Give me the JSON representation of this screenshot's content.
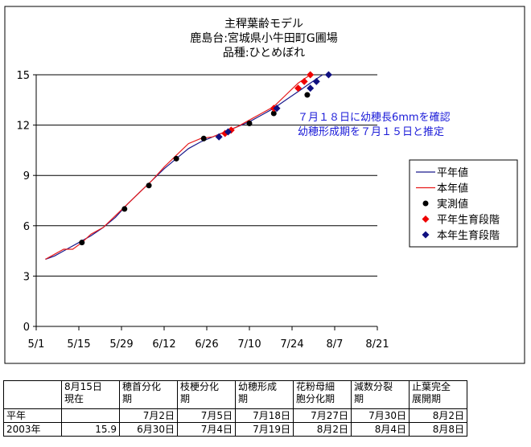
{
  "chart_data": {
    "type": "line",
    "title_lines": [
      "主稈葉齢モデル",
      "鹿島台:宮城県小牛田町G圃場",
      "品種:ひとめぼれ"
    ],
    "annotation_lines": [
      "７月１８日に幼穂長6mmを確認",
      "幼穂形成期を７月１５日と推定"
    ],
    "annotation_color": "#1a1ad8",
    "x_tick_labels": [
      "5/1",
      "5/15",
      "5/29",
      "6/12",
      "6/26",
      "7/10",
      "7/24",
      "8/7",
      "8/21"
    ],
    "x_tick_days": [
      0,
      14,
      28,
      42,
      56,
      70,
      84,
      98,
      112
    ],
    "x_range_days": [
      0,
      112
    ],
    "y_ticks": [
      0,
      3,
      6,
      9,
      12,
      15
    ],
    "ylim": [
      0,
      15
    ],
    "grid": "horizontal",
    "legend_position": "right",
    "series": [
      {
        "name": "平年値",
        "kind": "line",
        "color": "#1a1a8c",
        "points": [
          [
            3,
            4.0
          ],
          [
            6,
            4.2
          ],
          [
            10,
            4.6
          ],
          [
            14,
            5.0
          ],
          [
            18,
            5.4
          ],
          [
            22,
            5.9
          ],
          [
            26,
            6.5
          ],
          [
            30,
            7.3
          ],
          [
            34,
            8.0
          ],
          [
            38,
            8.7
          ],
          [
            42,
            9.4
          ],
          [
            46,
            10.0
          ],
          [
            50,
            10.6
          ],
          [
            54,
            11.0
          ],
          [
            58,
            11.3
          ],
          [
            62,
            11.6
          ],
          [
            66,
            11.9
          ],
          [
            70,
            12.2
          ],
          [
            74,
            12.6
          ],
          [
            78,
            13.0
          ],
          [
            82,
            13.5
          ],
          [
            86,
            14.0
          ],
          [
            90,
            14.5
          ],
          [
            94,
            15.0
          ]
        ]
      },
      {
        "name": "本年値",
        "kind": "line",
        "color": "#e81a1a",
        "points": [
          [
            3,
            4.0
          ],
          [
            6,
            4.3
          ],
          [
            9,
            4.6
          ],
          [
            12,
            4.6
          ],
          [
            15,
            5.0
          ],
          [
            18,
            5.5
          ],
          [
            22,
            5.9
          ],
          [
            26,
            6.6
          ],
          [
            30,
            7.3
          ],
          [
            34,
            8.0
          ],
          [
            38,
            8.7
          ],
          [
            42,
            9.5
          ],
          [
            46,
            10.2
          ],
          [
            50,
            10.9
          ],
          [
            54,
            11.2
          ],
          [
            58,
            11.3
          ],
          [
            62,
            11.6
          ],
          [
            66,
            11.9
          ],
          [
            70,
            12.3
          ],
          [
            74,
            12.7
          ],
          [
            78,
            13.1
          ],
          [
            82,
            13.8
          ],
          [
            86,
            14.5
          ],
          [
            90,
            15.0
          ]
        ]
      },
      {
        "name": "実測値",
        "kind": "dots",
        "color": "#000000",
        "marker": "circle",
        "points": [
          [
            15,
            5.0
          ],
          [
            29,
            7.0
          ],
          [
            37,
            8.4
          ],
          [
            46,
            10.0
          ],
          [
            55,
            11.2
          ],
          [
            70,
            12.1
          ],
          [
            78,
            12.7
          ],
          [
            89,
            13.8
          ]
        ]
      },
      {
        "name": "平年生育段階",
        "kind": "dots",
        "color": "#ee0000",
        "marker": "diamond",
        "points": [
          [
            62,
            11.5
          ],
          [
            64,
            11.7
          ],
          [
            78,
            13.0
          ],
          [
            86,
            14.2
          ],
          [
            88,
            14.6
          ],
          [
            90,
            15.0
          ]
        ]
      },
      {
        "name": "本年生育段階",
        "kind": "dots",
        "color": "#101080",
        "marker": "diamond",
        "points": [
          [
            60,
            11.3
          ],
          [
            63,
            11.6
          ],
          [
            79,
            13.0
          ],
          [
            90,
            14.2
          ],
          [
            92,
            14.6
          ],
          [
            96,
            15.0
          ]
        ]
      }
    ]
  },
  "table": {
    "headers": [
      "",
      "8月15日\n現在",
      "穂首分化\n期",
      "枝梗分化\n期",
      "幼穂形成\n期",
      "花粉母細\n胞分化期",
      "減数分裂\n期",
      "止葉完全\n展開期"
    ],
    "rows": [
      [
        "平年",
        "",
        "7月2日",
        "7月5日",
        "7月18日",
        "7月27日",
        "7月30日",
        "8月2日"
      ],
      [
        "2003年",
        "15.9",
        "6月30日",
        "7月4日",
        "7月19日",
        "8月2日",
        "8月4日",
        "8月8日"
      ]
    ]
  }
}
